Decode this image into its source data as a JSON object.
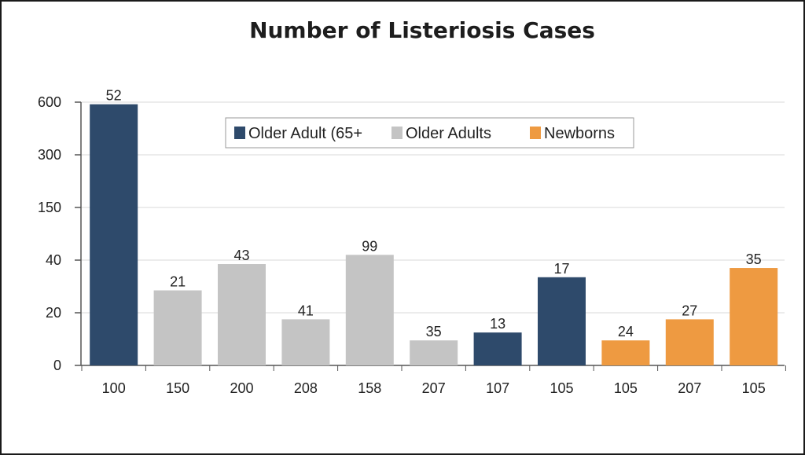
{
  "chart_data": {
    "type": "bar",
    "title": "Number of Listeriosis Cases",
    "xlabel": "",
    "ylabel": "",
    "y_tick_labels": [
      "0",
      "20",
      "40",
      "150",
      "300",
      "600"
    ],
    "categories": [
      "100",
      "150",
      "200",
      "208",
      "158",
      "207",
      "107",
      "105",
      "105",
      "207",
      "105"
    ],
    "values": [
      52,
      21,
      43,
      41,
      99,
      35,
      13,
      17,
      24,
      27,
      35
    ],
    "bar_series": [
      "Older Adult (65+",
      "Older Adults",
      "Older Adults",
      "Older Adults",
      "Older Adults",
      "Older Adults",
      "Older Adult (65+",
      "Older Adult (65+",
      "Newborns",
      "Newborns",
      "Newborns"
    ],
    "bar_levels": [
      588,
      28.5,
      38.5,
      17.5,
      51,
      9.5,
      12.5,
      33.5,
      9.5,
      17.5,
      37
    ],
    "legend": [
      {
        "name": "Older Adult (65+",
        "color": "#2e4a6b"
      },
      {
        "name": "Older Adults",
        "color": "#c4c4c4"
      },
      {
        "name": "Newborns",
        "color": "#ee9a41"
      }
    ],
    "legend_position": "top-center",
    "grid": true
  }
}
